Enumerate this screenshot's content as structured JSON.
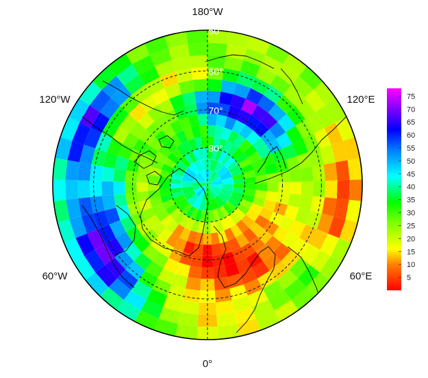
{
  "map": {
    "projection": "north-polar-stereographic",
    "lat_min": 50,
    "cell_size_deg": {
      "lat": 3,
      "lon": 8
    },
    "lon_labels": {
      "top": "180°W",
      "bottom": "0°",
      "upper_left": "120°W",
      "upper_right": "120°E",
      "lower_left": "60°W",
      "lower_right": "60°E"
    },
    "lat_labels": [
      "50°",
      "60°",
      "70°",
      "80°"
    ],
    "lat_values": [
      50,
      60,
      70,
      80
    ],
    "grid_meridians": [
      0,
      180
    ],
    "grid_style": "dashed"
  },
  "colorbar": {
    "ticks": [
      "5",
      "10",
      "15",
      "20",
      "25",
      "30",
      "35",
      "40",
      "45",
      "50",
      "55",
      "60",
      "65",
      "70",
      "75"
    ],
    "tick_values": [
      5,
      10,
      15,
      20,
      25,
      30,
      35,
      40,
      45,
      50,
      55,
      60,
      65,
      70,
      75
    ],
    "vmin": 0,
    "vmax": 78,
    "stops": [
      {
        "v": 0,
        "color": "#ff0000"
      },
      {
        "v": 10,
        "color": "#ff8000"
      },
      {
        "v": 16,
        "color": "#ffff00"
      },
      {
        "v": 26,
        "color": "#80ff00"
      },
      {
        "v": 34,
        "color": "#00ff00"
      },
      {
        "v": 44,
        "color": "#00ffff"
      },
      {
        "v": 54,
        "color": "#0080ff"
      },
      {
        "v": 62,
        "color": "#0000ff"
      },
      {
        "v": 70,
        "color": "#8000ff"
      },
      {
        "v": 78,
        "color": "#ff00ff"
      }
    ]
  }
}
